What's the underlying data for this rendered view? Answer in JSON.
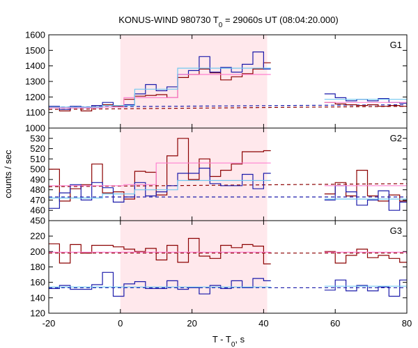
{
  "title": {
    "prefix": "KONUS-WIND 980730 T",
    "sub": "0",
    "suffix": " = 29060s UT (08:04:20.000)"
  },
  "xlabel": {
    "main": "T - T",
    "sub": "0",
    "suffix": ", s"
  },
  "ylabel": "counts / sec",
  "colors": {
    "dark_red": "#8b0000",
    "dark_blue": "#1a1aaa",
    "pink": "#ff80d0",
    "light_blue": "#70c8f0",
    "shade": "#ffe8ec"
  },
  "chart_data": [
    {
      "type": "line",
      "panel": "G1",
      "xlim": [
        -20,
        80
      ],
      "ylim": [
        1000,
        1600
      ],
      "yticks": [
        1000,
        1100,
        1200,
        1300,
        1400,
        1500,
        1600
      ],
      "xticks": [
        -20,
        0,
        20,
        40,
        60,
        80
      ],
      "shaded_interval": [
        0,
        41
      ],
      "series": [
        {
          "color": "dark_red",
          "style": "step",
          "segments": [
            {
              "edges": [
                -20,
                -17,
                -14,
                -11,
                -8,
                -5,
                -2,
                1,
                4,
                7,
                10,
                13,
                16,
                19,
                22,
                25,
                28,
                31,
                34,
                37,
                40,
                42
              ],
              "values": [
                1135,
                1110,
                1130,
                1110,
                1145,
                1150,
                1140,
                1185,
                1205,
                1210,
                1215,
                1195,
                1325,
                1345,
                1380,
                1355,
                1310,
                1330,
                1350,
                1380,
                1420
              ]
            },
            {
              "edges": [
                57,
                60,
                63,
                66,
                69,
                72,
                75,
                78,
                80
              ],
              "values": [
                1165,
                1155,
                1150,
                1145,
                1150,
                1140,
                1145,
                1140
              ]
            }
          ]
        },
        {
          "color": "dark_blue",
          "style": "step",
          "segments": [
            {
              "edges": [
                -20,
                -17,
                -14,
                -11,
                -8,
                -5,
                -2,
                1,
                4,
                7,
                10,
                13,
                16,
                19,
                22,
                25,
                28,
                31,
                34,
                37,
                40,
                42
              ],
              "values": [
                1140,
                1120,
                1140,
                1135,
                1145,
                1165,
                1145,
                1150,
                1220,
                1280,
                1240,
                1265,
                1345,
                1370,
                1460,
                1360,
                1390,
                1360,
                1410,
                1490,
                1380
              ]
            },
            {
              "edges": [
                57,
                60,
                63,
                66,
                69,
                72,
                75,
                78,
                80
              ],
              "values": [
                1220,
                1195,
                1175,
                1185,
                1175,
                1190,
                1165,
                1160
              ]
            }
          ]
        },
        {
          "color": "pink",
          "style": "step",
          "segments": [
            {
              "edges": [
                -20,
                -5,
                1,
                16,
                42
              ],
              "values": [
                1130,
                1135,
                1195,
                1345
              ]
            },
            {
              "edges": [
                57,
                80
              ],
              "values": [
                1165
              ]
            }
          ]
        },
        {
          "color": "light_blue",
          "style": "step",
          "segments": [
            {
              "edges": [
                -20,
                -5,
                4,
                16,
                42
              ],
              "values": [
                1135,
                1145,
                1250,
                1385
              ]
            },
            {
              "edges": [
                57,
                80
              ],
              "values": [
                1185
              ]
            }
          ]
        }
      ],
      "backgrounds": [
        {
          "color": "dark_red",
          "x": [
            -20,
            80
          ],
          "y": [
            1120,
            1140
          ]
        },
        {
          "color": "dark_blue",
          "x": [
            -20,
            80
          ],
          "y": [
            1135,
            1150
          ]
        }
      ]
    },
    {
      "type": "line",
      "panel": "G2",
      "xlim": [
        -20,
        80
      ],
      "ylim": [
        450,
        540
      ],
      "yticks": [
        450,
        460,
        470,
        480,
        490,
        500,
        510,
        520,
        530
      ],
      "xticks": [
        -20,
        0,
        20,
        40,
        60,
        80
      ],
      "shaded_interval": [
        0,
        41
      ],
      "series": [
        {
          "color": "dark_red",
          "style": "step",
          "segments": [
            {
              "edges": [
                -20,
                -17,
                -14,
                -11,
                -8,
                -5,
                -2,
                1,
                4,
                7,
                10,
                13,
                16,
                19,
                22,
                25,
                28,
                31,
                34,
                37,
                40,
                42
              ],
              "values": [
                500,
                469,
                481,
                485,
                505,
                477,
                478,
                471,
                498,
                497,
                475,
                513,
                530,
                490,
                510,
                493,
                499,
                505,
                517,
                517,
                518
              ]
            },
            {
              "edges": [
                57,
                60,
                63,
                66,
                69,
                72,
                75,
                78,
                80
              ],
              "values": [
                476,
                487,
                474,
                499,
                474,
                469,
                475,
                469
              ]
            }
          ]
        },
        {
          "color": "dark_blue",
          "style": "step",
          "segments": [
            {
              "edges": [
                -20,
                -17,
                -14,
                -11,
                -8,
                -5,
                -2,
                1,
                4,
                7,
                10,
                13,
                16,
                19,
                22,
                25,
                28,
                31,
                34,
                37,
                40,
                42
              ],
              "values": [
                462,
                477,
                485,
                470,
                487,
                482,
                468,
                473,
                487,
                474,
                478,
                484,
                496,
                496,
                501,
                486,
                484,
                484,
                495,
                481,
                496
              ]
            },
            {
              "edges": [
                57,
                60,
                63,
                66,
                69,
                72,
                75,
                78,
                80
              ],
              "values": [
                470,
                484,
                478,
                465,
                470,
                479,
                460,
                468
              ]
            }
          ]
        },
        {
          "color": "pink",
          "style": "step",
          "segments": [
            {
              "edges": [
                -20,
                1,
                10,
                42
              ],
              "values": [
                484,
                485,
                506
              ]
            },
            {
              "edges": [
                57,
                80
              ],
              "values": [
                484
              ]
            }
          ]
        },
        {
          "color": "light_blue",
          "style": "step",
          "segments": [
            {
              "edges": [
                -20,
                -5,
                4,
                16,
                42
              ],
              "values": [
                472,
                476,
                480,
                489
              ]
            },
            {
              "edges": [
                57,
                80
              ],
              "values": [
                471
              ]
            }
          ]
        }
      ],
      "backgrounds": [
        {
          "color": "dark_red",
          "x": [
            -20,
            80
          ],
          "y": [
            483,
            486
          ]
        },
        {
          "color": "dark_blue",
          "x": [
            -20,
            80
          ],
          "y": [
            473,
            473
          ]
        }
      ]
    },
    {
      "type": "line",
      "panel": "G3",
      "xlim": [
        -20,
        80
      ],
      "ylim": [
        120,
        240
      ],
      "yticks": [
        120,
        140,
        160,
        180,
        200,
        220
      ],
      "xticks": [
        -20,
        0,
        20,
        40,
        60,
        80
      ],
      "shaded_interval": [
        0,
        41
      ],
      "series": [
        {
          "color": "dark_red",
          "style": "step",
          "segments": [
            {
              "edges": [
                -20,
                -17,
                -14,
                -11,
                -8,
                -5,
                -2,
                1,
                4,
                7,
                10,
                13,
                16,
                19,
                22,
                25,
                28,
                31,
                34,
                37,
                40,
                42
              ],
              "values": [
                210,
                185,
                209,
                198,
                208,
                208,
                206,
                203,
                200,
                204,
                189,
                208,
                186,
                217,
                194,
                191,
                208,
                205,
                209,
                207,
                184
              ]
            },
            {
              "edges": [
                57,
                60,
                63,
                66,
                69,
                72,
                75,
                78,
                80
              ],
              "values": [
                200,
                185,
                195,
                203,
                192,
                195,
                191,
                186
              ]
            }
          ]
        },
        {
          "color": "dark_blue",
          "style": "step",
          "segments": [
            {
              "edges": [
                -20,
                -17,
                -14,
                -11,
                -8,
                -5,
                -2,
                1,
                4,
                7,
                10,
                13,
                16,
                19,
                22,
                25,
                28,
                31,
                34,
                37,
                40,
                42
              ],
              "values": [
                152,
                156,
                151,
                151,
                157,
                173,
                142,
                158,
                161,
                152,
                152,
                162,
                151,
                153,
                145,
                156,
                152,
                162,
                153,
                165,
                162
              ]
            },
            {
              "edges": [
                57,
                60,
                63,
                66,
                69,
                72,
                75,
                78,
                80
              ],
              "values": [
                150,
                163,
                149,
                156,
                149,
                154,
                142,
                163
              ]
            }
          ]
        },
        {
          "color": "pink",
          "style": "step",
          "segments": [
            {
              "edges": [
                -20,
                42
              ],
              "values": [
                199
              ]
            },
            {
              "edges": [
                57,
                80
              ],
              "values": [
                199
              ]
            }
          ]
        },
        {
          "color": "light_blue",
          "style": "step",
          "segments": [
            {
              "edges": [
                -20,
                42
              ],
              "values": [
                154
              ]
            },
            {
              "edges": [
                57,
                80
              ],
              "values": [
                155
              ]
            }
          ]
        }
      ],
      "backgrounds": [
        {
          "color": "dark_red",
          "x": [
            -20,
            80
          ],
          "y": [
            198,
            198
          ]
        },
        {
          "color": "dark_blue",
          "x": [
            -20,
            80
          ],
          "y": [
            153,
            153
          ]
        }
      ]
    }
  ]
}
